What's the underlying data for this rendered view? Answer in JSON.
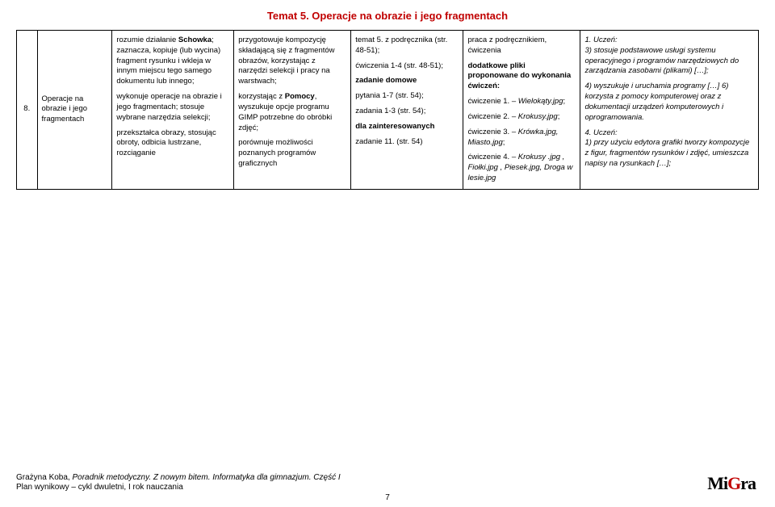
{
  "title": "Temat 5. Operacje na obrazie i jego fragmentach",
  "row": {
    "num": "8.",
    "topic": "Operacje na obrazie i jego fragmentach",
    "c1": {
      "p1a": "rozumie działanie ",
      "p1b": "Schowka",
      "p1c": "; zaznacza, kopiuje (lub wycina) fragment rysunku i wkleja w innym miejscu tego samego dokumentu lub innego;",
      "p2": "wykonuje operacje na obrazie i jego fragmentach; stosuje wybrane narzędzia selekcji;",
      "p3": "przekształca obrazy, stosując obroty, odbicia lustrzane, rozciąganie"
    },
    "c2": {
      "p1": "przygotowuje kompozycję składającą się z fragmentów obrazów, korzystając z narzędzi selekcji i pracy na warstwach;",
      "p2a": "korzystając z ",
      "p2b": "Pomocy",
      "p2c": ", wyszukuje opcje programu GIMP potrzebne do obróbki zdjęć;",
      "p3": "porównuje możliwości poznanych programów graficznych"
    },
    "c3": {
      "p1": "temat 5. z podręcznika (str. 48-51);",
      "p2": "ćwiczenia 1-4 (str. 48-51);",
      "p3": "zadanie domowe",
      "p4": "pytania 1-7 (str. 54);",
      "p5": "zadania 1-3 (str. 54);",
      "p6": "dla zainteresowanych",
      "p7": "zadanie 11. (str. 54)"
    },
    "c4": {
      "p1": "praca z podręcznikiem, ćwiczenia",
      "p2a": "dodatkowe pliki",
      "p2b": " proponowane do wykonania ćwiczeń:",
      "e1a": "ćwiczenie 1. – ",
      "e1b": "Wielokąty.jpg",
      "e2a": "ćwiczenie 2. – ",
      "e2b": "Krokusy.jpg",
      "e3a": "ćwiczenie 3. – ",
      "e3b": "Krówka.jpg, Miasto.jpg",
      "e4a": "ćwiczenie 4. – ",
      "e4b": "Krokusy .jpg , Fiołki.jpg , Piesek.jpg, Droga w lesie.jpg"
    },
    "c5": {
      "h1": "1. Uczeń:",
      "p1": "3) stosuje podstawowe usługi systemu operacyjnego i programów narzędziowych do zarządzania zasobami (plikami) […];",
      "p2": "4) wyszukuje i uruchamia programy […] 6) korzysta z pomocy komputerowej oraz z dokumentacji urządzeń komputerowych i oprogramowania.",
      "h2": "4. Uczeń:",
      "p3": "1) przy użyciu edytora grafiki tworzy kompozycje z figur, fragmentów rysunków i zdjęć, umieszcza napisy na rysunkach […];"
    }
  },
  "footer": {
    "l1a": "Grażyna Koba, ",
    "l1b": "Poradnik metodyczny. Z nowym bitem. Informatyka dla gimnazjum. Część I",
    "l2": "Plan wynikowy – cykl dwuletni, I rok nauczania"
  },
  "pagenum": "7",
  "logo": {
    "t1": "Mi",
    "t2": "G",
    "t3": "ra"
  }
}
